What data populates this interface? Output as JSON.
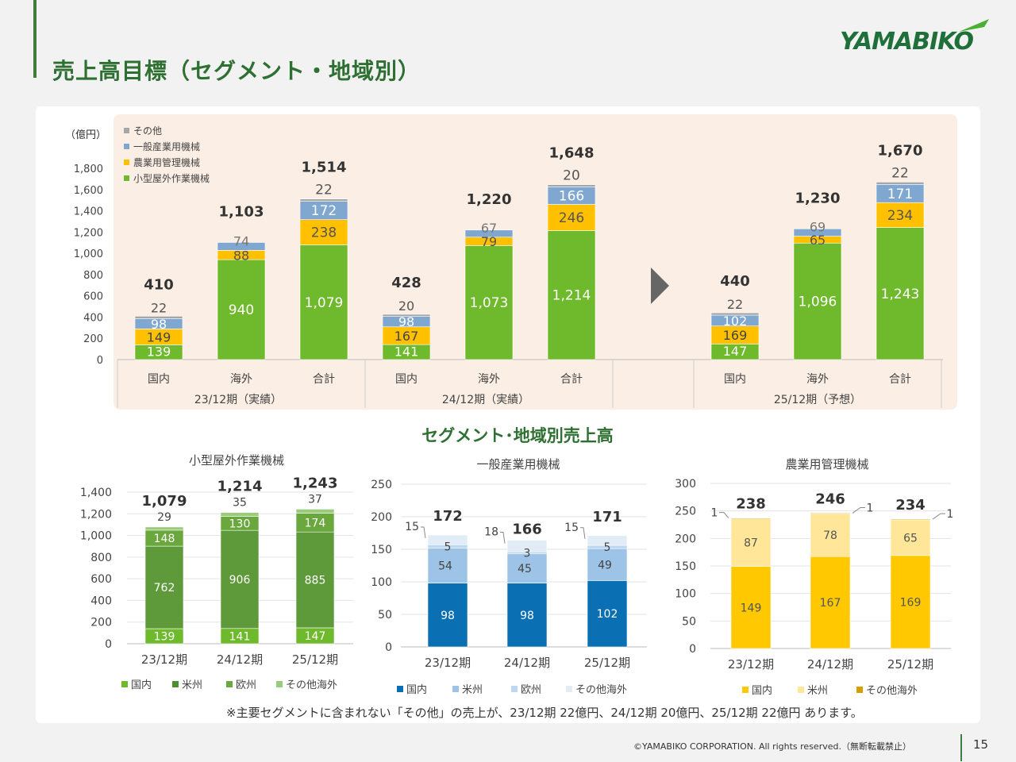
{
  "page": {
    "title": "売上高目標（セグメント・地域別）",
    "logo": "YAMABIKO",
    "section_title": "セグメント･地域別売上高",
    "footnote": "※主要セグメントに含まれない「その他」の売上が、23/12期 22億円、24/12期 20億円、25/12期 22億円 あります。",
    "copyright": "©YAMABIKO CORPORATION. All rights reserved.（無断転載禁止）",
    "page_number": "15",
    "colors": {
      "green_title": "#2e7031",
      "panel_bg": "#fbeee4"
    }
  },
  "chart_data": [
    {
      "id": "main",
      "type": "bar",
      "unit_label": "（億円）",
      "ylim": [
        0,
        1800
      ],
      "yticks": [
        0,
        200,
        400,
        600,
        800,
        1000,
        1200,
        1400,
        1600,
        1800
      ],
      "legend": [
        "その他",
        "一般産業用機械",
        "農業用管理機械",
        "小型屋外作業機械"
      ],
      "categories": [
        "国内",
        "海外",
        "合計",
        "国内",
        "海外",
        "合計",
        "国内",
        "海外",
        "合計"
      ],
      "groups": [
        "23/12期（実績）",
        "24/12期（実績）",
        "25/12期（予想）"
      ],
      "series": [
        {
          "name": "小型屋外作業機械",
          "color": "#6fba2c",
          "values": [
            139,
            940,
            1079,
            141,
            1073,
            1214,
            147,
            1096,
            1243
          ]
        },
        {
          "name": "農業用管理機械",
          "color": "#ffc000",
          "values": [
            149,
            88,
            238,
            167,
            79,
            246,
            169,
            65,
            234
          ]
        },
        {
          "name": "一般産業用機械",
          "color": "#7fa7cf",
          "values": [
            98,
            74,
            172,
            98,
            67,
            166,
            102,
            69,
            171
          ]
        },
        {
          "name": "その他",
          "color": "#a6a6a6",
          "values": [
            22,
            null,
            22,
            20,
            null,
            20,
            22,
            null,
            22
          ]
        }
      ],
      "totals": [
        "410",
        "1,103",
        "1,514",
        "428",
        "1,220",
        "1,648",
        "440",
        "1,230",
        "1,670"
      ],
      "value_labels": {
        "小型屋外作業機械": [
          "139",
          "940",
          "1,079",
          "141",
          "1,073",
          "1,214",
          "147",
          "1,096",
          "1,243"
        ],
        "農業用管理機械": [
          "149",
          "88",
          "238",
          "167",
          "79",
          "246",
          "169",
          "65",
          "234"
        ],
        "一般産業用機械": [
          "98",
          "74",
          "172",
          "98",
          "67",
          "166",
          "102",
          "69",
          "171"
        ],
        "その他": [
          "22",
          "",
          "22",
          "20",
          "",
          "20",
          "22",
          "",
          "22"
        ]
      }
    },
    {
      "id": "small",
      "type": "bar",
      "title": "小型屋外作業機械",
      "ylim": [
        0,
        1400
      ],
      "yticks": [
        0,
        200,
        400,
        600,
        800,
        1000,
        1200,
        1400
      ],
      "categories": [
        "23/12期",
        "24/12期",
        "25/12期"
      ],
      "series": [
        {
          "name": "国内",
          "color": "#6fba2c",
          "values": [
            139,
            141,
            147
          ]
        },
        {
          "name": "米州",
          "color": "#5e9a3a",
          "values": [
            762,
            906,
            885
          ]
        },
        {
          "name": "欧州",
          "color": "#6aa83e",
          "values": [
            148,
            130,
            174
          ]
        },
        {
          "name": "その他海外",
          "color": "#9bca7c",
          "values": [
            29,
            35,
            37
          ]
        }
      ],
      "totals": [
        "1,079",
        "1,214",
        "1,243"
      ],
      "legend_colors": [
        "#6fba2c",
        "#4e8f30",
        "#6aa83e",
        "#9bca7c"
      ]
    },
    {
      "id": "industrial",
      "type": "bar",
      "title": "一般産業用機械",
      "ylim": [
        0,
        250
      ],
      "yticks": [
        0,
        50,
        100,
        150,
        200,
        250
      ],
      "categories": [
        "23/12期",
        "24/12期",
        "25/12期"
      ],
      "series": [
        {
          "name": "国内",
          "color": "#0b6fb3",
          "values": [
            98,
            98,
            102
          ]
        },
        {
          "name": "米州",
          "color": "#9dc3e6",
          "values": [
            54,
            45,
            49
          ]
        },
        {
          "name": "欧州",
          "color": "#bdd7ee",
          "values": [
            5,
            3,
            5
          ]
        },
        {
          "name": "その他海外",
          "color": "#e2ecf7",
          "values": [
            15,
            18,
            15
          ]
        }
      ],
      "totals": [
        "172",
        "166",
        "171"
      ]
    },
    {
      "id": "agri",
      "type": "bar",
      "title": "農業用管理機械",
      "ylim": [
        0,
        300
      ],
      "yticks": [
        0,
        50,
        100,
        150,
        200,
        250,
        300
      ],
      "categories": [
        "23/12期",
        "24/12期",
        "25/12期"
      ],
      "series": [
        {
          "name": "国内",
          "color": "#ffc800",
          "values": [
            149,
            167,
            169
          ]
        },
        {
          "name": "米州",
          "color": "#ffe699",
          "values": [
            87,
            78,
            65
          ]
        },
        {
          "name": "その他海外",
          "color": "#d4a000",
          "values": [
            1,
            1,
            1
          ]
        }
      ],
      "totals": [
        "238",
        "246",
        "234"
      ]
    }
  ]
}
